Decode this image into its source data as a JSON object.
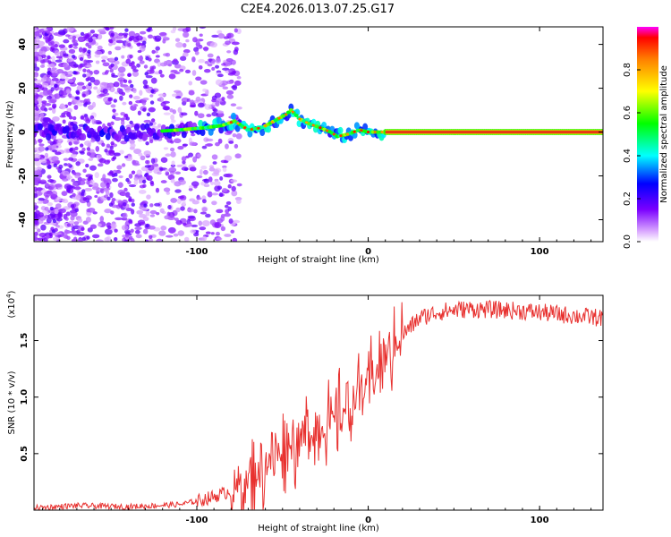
{
  "title": "C2E4.2026.013.07.25.G17",
  "chart_data": [
    {
      "type": "heatmap",
      "xlabel": "Height of straight line (km)",
      "ylabel": "Frequency (Hz)",
      "xlim": [
        -195,
        137
      ],
      "ylim": [
        -50,
        48
      ],
      "xticks": [
        "-100",
        "0",
        "100"
      ],
      "xtick_values": [
        -100,
        0,
        100
      ],
      "yticks": [
        "-40",
        "-20",
        "0",
        "20",
        "40"
      ],
      "ytick_values": [
        -40,
        -20,
        0,
        20,
        40
      ],
      "colorbar": {
        "label": "Normalized spectral amplitude",
        "range": [
          0,
          1
        ],
        "ticks": [
          "0.0",
          "0.2",
          "0.4",
          "0.6",
          "0.8"
        ],
        "tick_values": [
          0.0,
          0.2,
          0.4,
          0.6,
          0.8
        ]
      },
      "ridge": {
        "x": [
          -190,
          -170,
          -150,
          -130,
          -110,
          -95,
          -85,
          -78,
          -70,
          -62,
          -55,
          -48,
          -45,
          -40,
          -35,
          -28,
          -22,
          -18,
          -12,
          -5,
          0,
          10,
          20,
          60,
          100,
          137
        ],
        "freq": [
          0,
          0,
          -1,
          0,
          1,
          2,
          3,
          5,
          1,
          2,
          5,
          8,
          10,
          6,
          4,
          2,
          0,
          -2,
          -1,
          1,
          0,
          0,
          0,
          0,
          0,
          0
        ]
      }
    },
    {
      "type": "line",
      "xlabel": "Height of straight line (km)",
      "ylabel": "SNR (10 * v/v)",
      "y_multiplier": "(x10",
      "y_multiplier_exp": "4",
      "y_multiplier_close": ")",
      "xlim": [
        -195,
        137
      ],
      "ylim": [
        0,
        19000
      ],
      "xticks": [
        "-100",
        "0",
        "100"
      ],
      "xtick_values": [
        -100,
        0,
        100
      ],
      "yticks": [
        "0.5",
        "1.0",
        "1.5"
      ],
      "ytick_values": [
        5000,
        10000,
        15000
      ],
      "series": [
        {
          "name": "SNR",
          "color": "#e8312f",
          "x": [
            -195,
            -170,
            -140,
            -110,
            -100,
            -90,
            -80,
            -70,
            -60,
            -50,
            -40,
            -30,
            -20,
            -10,
            0,
            10,
            20,
            30,
            40,
            50,
            60,
            80,
            100,
            120,
            137
          ],
          "y": [
            200,
            400,
            300,
            500,
            800,
            1200,
            1700,
            2500,
            4000,
            5500,
            6300,
            7000,
            8000,
            9500,
            11000,
            13500,
            15500,
            17000,
            17500,
            17700,
            17800,
            17700,
            17500,
            17200,
            17000
          ]
        }
      ]
    }
  ],
  "colors": {
    "line": "#e8312f",
    "ridge_core": "#e0201c",
    "background": "#ffffff"
  }
}
